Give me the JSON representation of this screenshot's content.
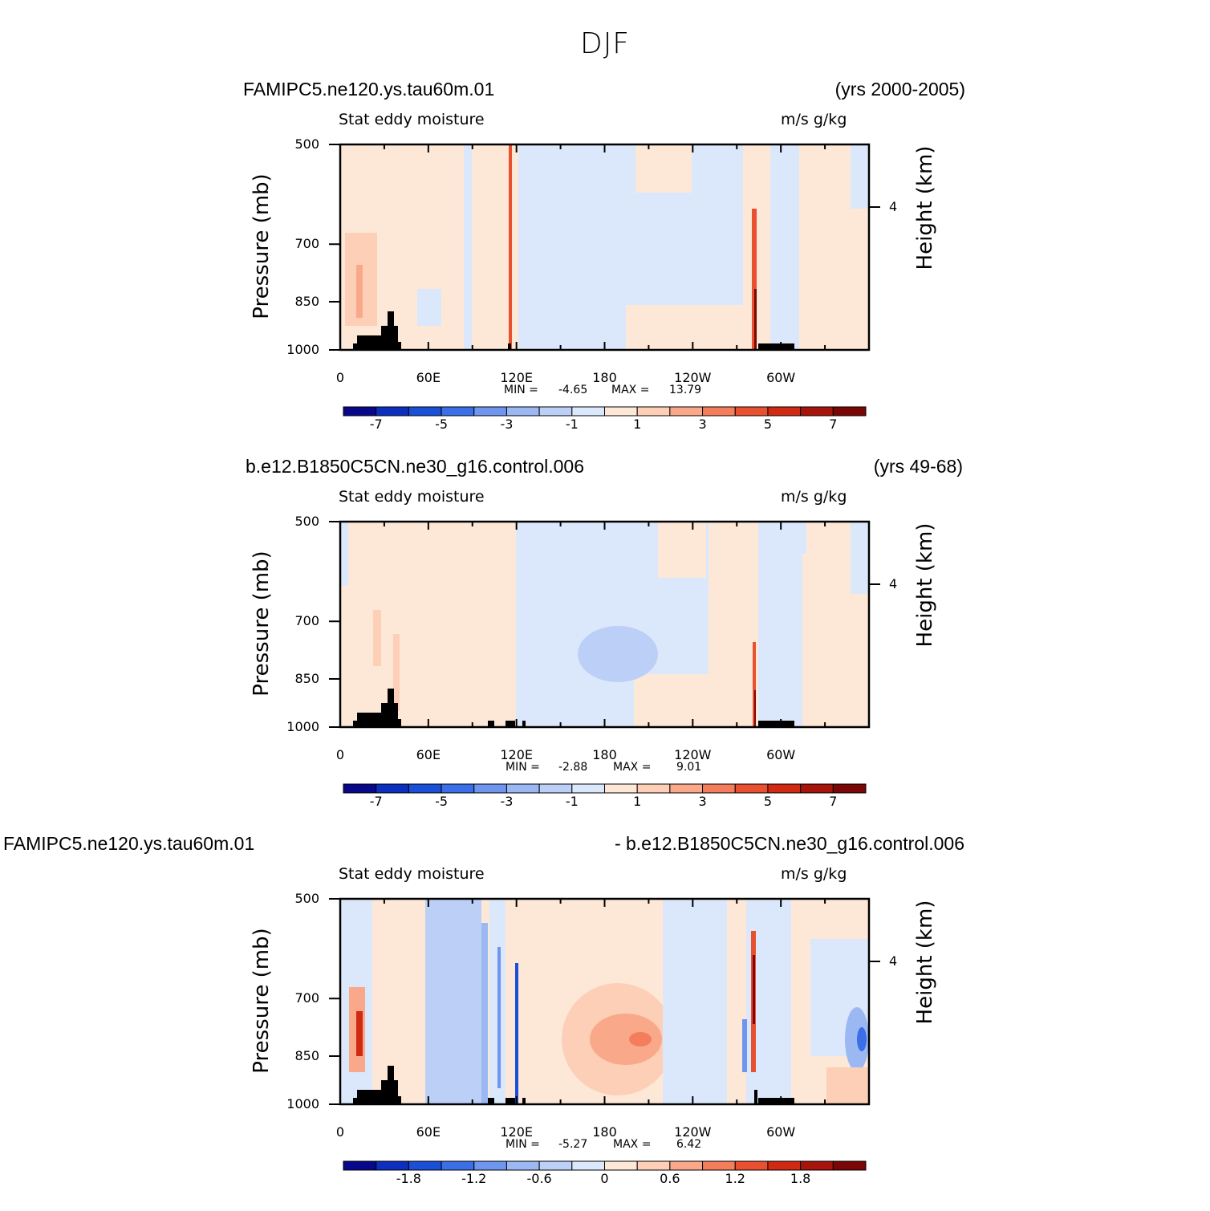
{
  "title": "DJF",
  "palette": [
    "#08088a",
    "#0c2fbf",
    "#1a4fd8",
    "#3b6fe8",
    "#6f96ee",
    "#9cb8f3",
    "#bcd0f7",
    "#dbe8fb",
    "#fde8d8",
    "#fccfb6",
    "#f9a98a",
    "#f47e5b",
    "#e8502f",
    "#d02a12",
    "#a7140c",
    "#7a0605"
  ],
  "chart_data": [
    {
      "type": "heatmap",
      "case_left": "FAMIPC5.ne120.ys.tau60m.01",
      "case_right": "(yrs 2000-2005)",
      "variable": "Stat eddy moisture",
      "units": "m/s g/kg",
      "ylabel": "Pressure (mb)",
      "ylabel_right": "Height (km)",
      "right_tick": "4",
      "y_ticks": [
        "500",
        "700",
        "850",
        "1000"
      ],
      "x_ticks": [
        "0",
        "60E",
        "120E",
        "180",
        "120W",
        "60W"
      ],
      "min_label": "MIN =",
      "min_value": "-4.65",
      "max_label": "MAX =",
      "max_value": "13.79",
      "colorbar_labels": [
        "-7",
        "-5",
        "-3",
        "-1",
        "1",
        "3",
        "5",
        "7"
      ]
    },
    {
      "type": "heatmap",
      "case_left": "b.e12.B1850C5CN.ne30_g16.control.006",
      "case_right": "(yrs 49-68)",
      "variable": "Stat eddy moisture",
      "units": "m/s g/kg",
      "ylabel": "Pressure (mb)",
      "ylabel_right": "Height (km)",
      "right_tick": "4",
      "y_ticks": [
        "500",
        "700",
        "850",
        "1000"
      ],
      "x_ticks": [
        "0",
        "60E",
        "120E",
        "180",
        "120W",
        "60W"
      ],
      "min_label": "MIN =",
      "min_value": "-2.88",
      "max_label": "MAX =",
      "max_value": "9.01",
      "colorbar_labels": [
        "-7",
        "-5",
        "-3",
        "-1",
        "1",
        "3",
        "5",
        "7"
      ]
    },
    {
      "type": "heatmap",
      "case_left": "FAMIPC5.ne120.ys.tau60m.01",
      "case_right": "- b.e12.B1850C5CN.ne30_g16.control.006",
      "variable": "Stat eddy moisture",
      "units": "m/s g/kg",
      "ylabel": "Pressure (mb)",
      "ylabel_right": "Height (km)",
      "right_tick": "4",
      "y_ticks": [
        "500",
        "700",
        "850",
        "1000"
      ],
      "x_ticks": [
        "0",
        "60E",
        "120E",
        "180",
        "120W",
        "60W"
      ],
      "min_label": "MIN =",
      "min_value": "-5.27",
      "max_label": "MAX =",
      "max_value": "6.42",
      "colorbar_labels": [
        "-1.8",
        "-1.2",
        "-0.6",
        "0",
        "0.6",
        "1.2",
        "1.8"
      ]
    }
  ]
}
